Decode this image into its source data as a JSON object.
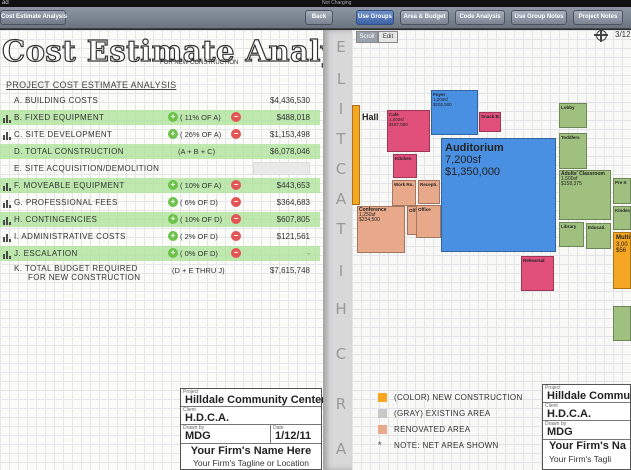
{
  "status": {
    "carrier": "ad",
    "charge": "Not Charging"
  },
  "toolbar_left": {
    "title_button": "Cost Estimate Analysis",
    "back_button": "Back"
  },
  "toolbar_right": {
    "tabs": [
      "Use Groups",
      "Area & Budget",
      "Code Analysis",
      "Use Group Notes",
      "Project Notes"
    ],
    "active_tab": "Use Groups"
  },
  "estimate": {
    "title": "Cost Estimate Analysis",
    "subtitle": "FOR NEW CONSTRUCTION",
    "section_heading": "PROJECT COST ESTIMATE ANALYSIS",
    "rows": [
      {
        "label": "A. BUILDING COSTS",
        "value": "$4,436,530",
        "highlight": false
      },
      {
        "label": "B. FIXED EQUIPMENT",
        "pct": "( 11% OF A)",
        "value": "$488,018",
        "highlight": true
      },
      {
        "label": "C. SITE DEVELOPMENT",
        "pct": "( 26% OF A)",
        "value": "$1,153,498",
        "highlight": false
      },
      {
        "label": "D. TOTAL CONSTRUCTION",
        "formula": "(A + B + C)",
        "value": "$6,078,046",
        "highlight": true
      },
      {
        "label": "E. SITE ACQUISITION/DEMOLITION",
        "value": "",
        "highlight": false
      },
      {
        "label": "F. MOVEABLE EQUIPMENT",
        "pct": "( 10% OF A)",
        "value": "$443,653",
        "highlight": true
      },
      {
        "label": "G. PROFESSIONAL FEES",
        "pct": "( 6% OF D)",
        "value": "$364,683",
        "highlight": false
      },
      {
        "label": "H. CONTINGENCIES",
        "pct": "( 10% OF D)",
        "value": "$607,805",
        "highlight": true
      },
      {
        "label": "I. ADMINISTRATIVE COSTS",
        "pct": "( 2% OF D)",
        "value": "$121,561",
        "highlight": false
      },
      {
        "label": "J. ESCALATION",
        "pct": "( 0% OF D)",
        "value": "-",
        "highlight": true
      },
      {
        "label": "K. TOTAL BUDGET REQUIRED",
        "label2": "FOR NEW CONSTRUCTION",
        "formula": "(D + E THRU J)",
        "value": "$7,615,748",
        "highlight": false
      }
    ]
  },
  "title_block": {
    "project_caption": "Project",
    "project": "Hilldale Community Center",
    "client_caption": "Client",
    "client": "H.D.C.A.",
    "drawn_caption": "Drawn by",
    "drawn": "MDG",
    "date_caption": "Date",
    "date": "1/12/11",
    "firm": "Your Firm's Name Here",
    "tagline": "Your Firm's Tagline or Location"
  },
  "title_block_right": {
    "project_caption": "Project",
    "project": "Hilldale Commun",
    "client_caption": "Client",
    "client": "H.D.C.A.",
    "drawn_caption": "Drawn by",
    "drawn": "MDG",
    "firm": "Your Firm's Na",
    "tagline": "Your Firm's Tagli"
  },
  "binding_letters": [
    "E",
    "L",
    "I",
    "T",
    "C",
    "A",
    "T",
    "I",
    "H",
    "C",
    "R",
    "A"
  ],
  "diagram": {
    "segments": [
      "Scroll",
      "Edit"
    ],
    "active_segment": "Scroll",
    "page_indicator": "3/12",
    "rooms": [
      {
        "name": "Hall",
        "area": "",
        "cost": "",
        "color": "#f5a623"
      },
      {
        "name": "Foyer",
        "area": "1,200sf",
        "cost": "$202,500",
        "color": "#4a90e2"
      },
      {
        "name": "Cafe",
        "area": "1,000sf",
        "cost": "$187,500",
        "color": "#e0507a"
      },
      {
        "name": "Snack B.",
        "area": "",
        "cost": "",
        "color": "#e0507a"
      },
      {
        "name": "Auditorium",
        "area": "7,200sf",
        "cost": "$1,350,000",
        "color": "#4a90e2"
      },
      {
        "name": "Kitchen",
        "area": "",
        "cost": "",
        "color": "#e0507a"
      },
      {
        "name": "Work Ro.",
        "area": "",
        "cost": "",
        "color": "#e8a98a"
      },
      {
        "name": "Recepti.",
        "area": "",
        "cost": "",
        "color": "#e8a98a"
      },
      {
        "name": "Conference",
        "area": "1,250sf",
        "cost": "$234,500",
        "color": "#e8a98a"
      },
      {
        "name": "Office",
        "area": "",
        "cost": "",
        "color": "#e8a98a"
      },
      {
        "name": "Office",
        "area": "",
        "cost": "",
        "color": "#e8a98a"
      },
      {
        "name": "Rehearsal",
        "area": "",
        "cost": "",
        "color": "#e0507a"
      },
      {
        "name": "Lobby",
        "area": "",
        "cost": "",
        "color": "#a0c080"
      },
      {
        "name": "Toddlers",
        "area": "",
        "cost": "",
        "color": "#a0c080"
      },
      {
        "name": "Adults' Classroom",
        "area": "1,500sf",
        "cost": "$158,375",
        "color": "#a0c080"
      },
      {
        "name": "Library",
        "area": "",
        "cost": "",
        "color": "#a0c080"
      },
      {
        "name": "Educati.",
        "area": "",
        "cost": "",
        "color": "#a0c080"
      },
      {
        "name": "Pre K",
        "area": "",
        "cost": "",
        "color": "#a0c080"
      },
      {
        "name": "Kinderga.",
        "area": "",
        "cost": "",
        "color": "#a0c080"
      },
      {
        "name": "Multi",
        "area": "3,00",
        "cost": "$56",
        "color": "#f5a623"
      }
    ],
    "legend": [
      {
        "label": "(COLOR) NEW CONSTRUCTION",
        "color": "#f5a623"
      },
      {
        "label": "(GRAY) EXISTING AREA",
        "color": "#c8c8c8"
      },
      {
        "label": "RENOVATED AREA",
        "color": "#e8a98a"
      },
      {
        "label": "NOTE: NET AREA SHOWN",
        "color": ""
      }
    ]
  }
}
